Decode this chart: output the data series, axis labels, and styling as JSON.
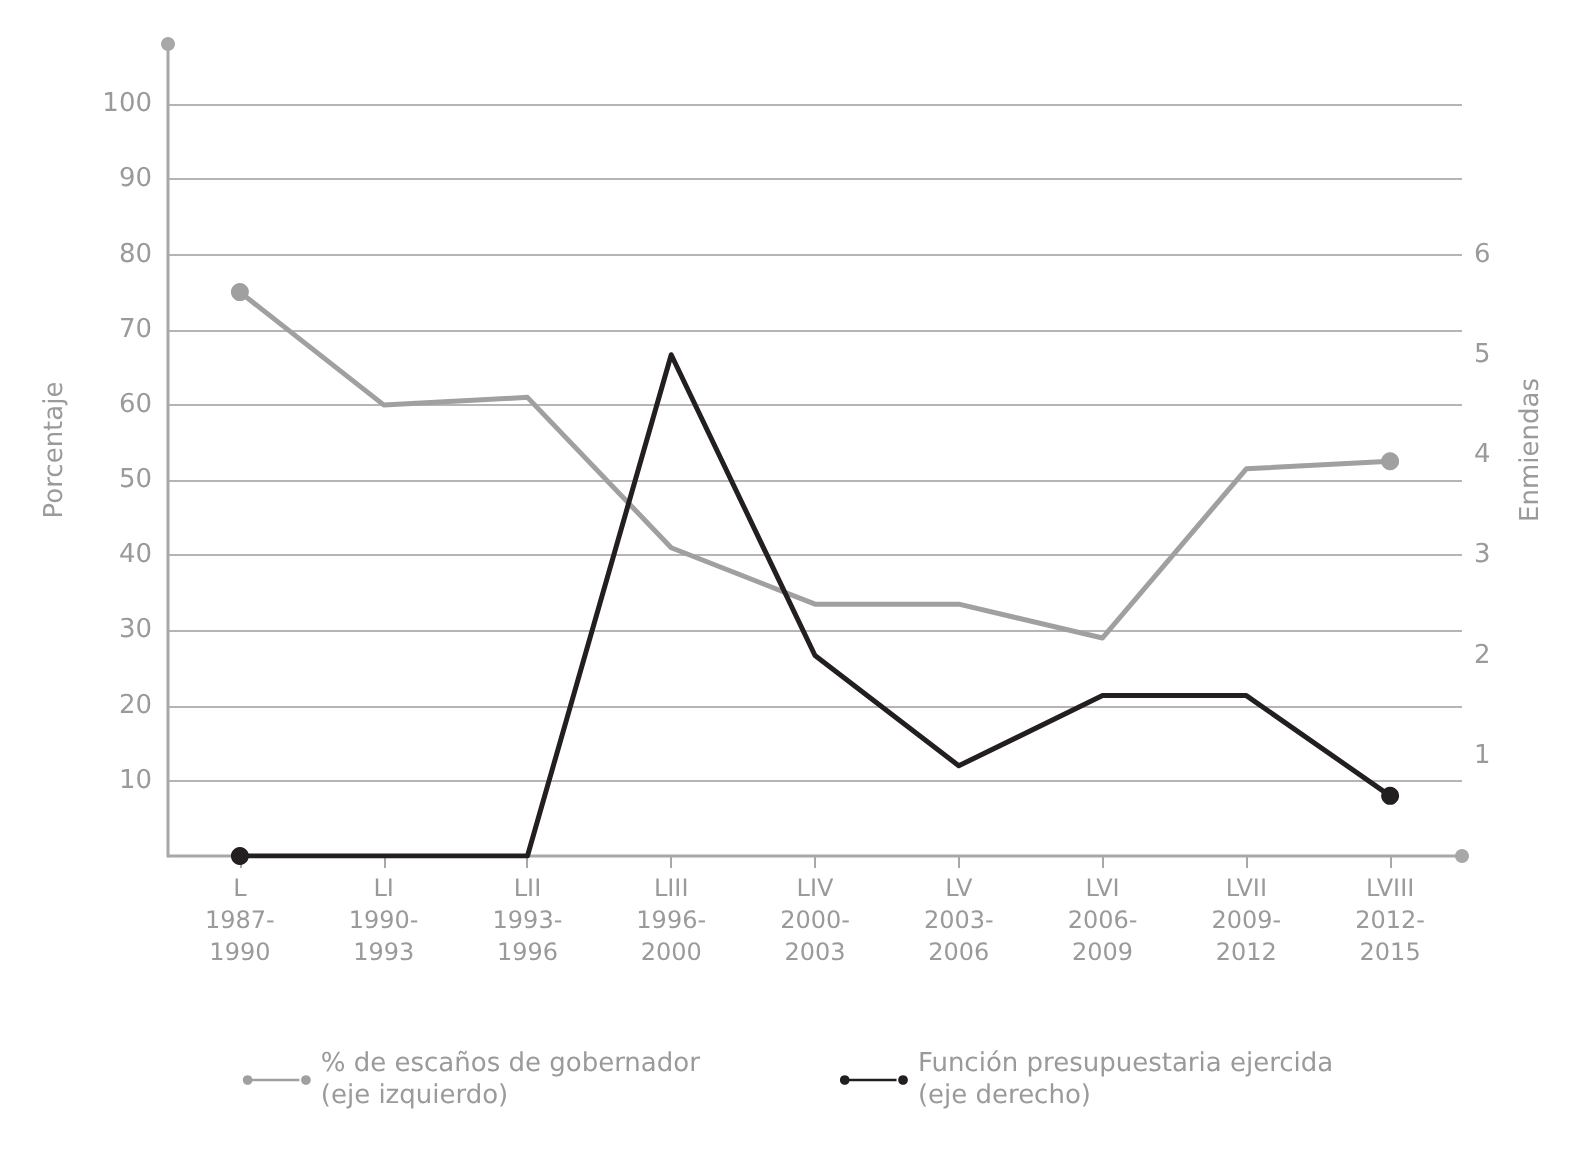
{
  "chart_data": {
    "type": "line",
    "categories": [
      "L\n1987-\n1990",
      "LI\n1990-\n1993",
      "LII\n1993-\n1996",
      "LIII\n1996-\n2000",
      "LIV\n2000-\n2003",
      "LV\n2003-\n2006",
      "LVI\n2006-\n2009",
      "LVII\n2009-\n2012",
      "LVIII\n2012-\n2015"
    ],
    "series": [
      {
        "name": "% de escaños de gobernador\n(eje izquierdo)",
        "color": "#a0a0a0",
        "values": [
          75,
          60,
          61,
          41,
          33.5,
          33.5,
          29,
          51.5,
          52.5
        ]
      },
      {
        "name": "Función presupuestaria ejercida\n(eje derecho)",
        "color": "#231f20",
        "axis": "y2",
        "values": [
          0,
          0,
          0,
          5,
          2,
          0.9,
          1.6,
          1.6,
          0.6
        ]
      }
    ],
    "ylabel": "Porcentaje",
    "y2label": "Enmiendas",
    "ylim": [
      0,
      108
    ],
    "yticks": [
      10,
      20,
      30,
      40,
      50,
      60,
      70,
      80,
      90,
      100
    ],
    "y2lim": [
      0,
      8.1
    ],
    "y2ticks": [
      1,
      2,
      3,
      4,
      5,
      6
    ],
    "grid": "y",
    "legend": "bottom",
    "line_style": "solid"
  }
}
